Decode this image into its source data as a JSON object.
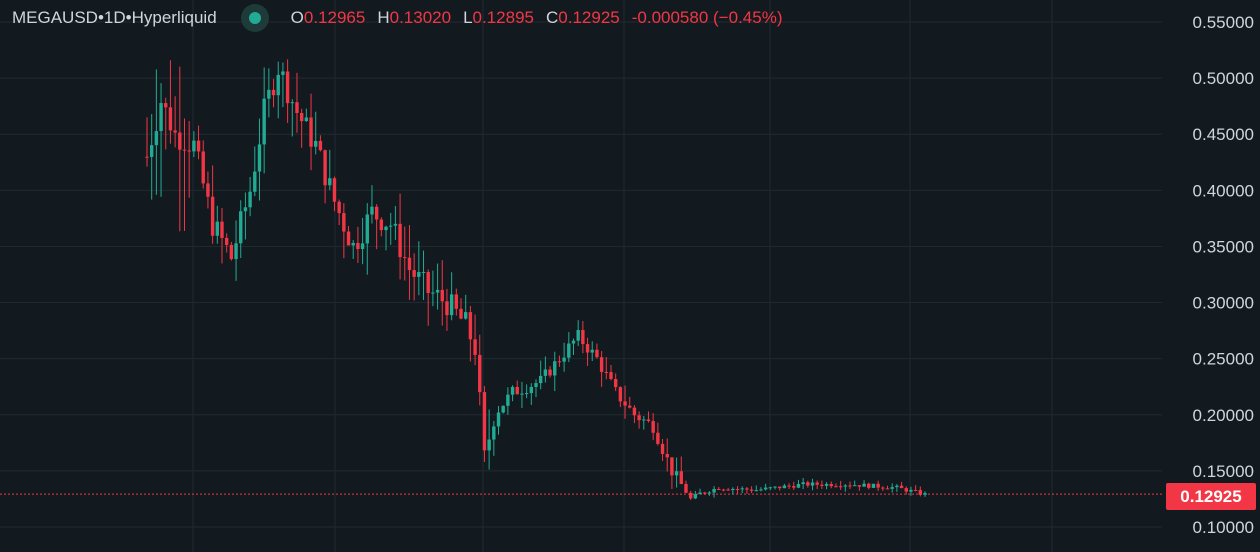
{
  "header": {
    "symbol": "MEGAUSD",
    "separator1": " • ",
    "interval": "1D",
    "separator2": " • ",
    "exchange": "Hyperliquid",
    "open_label": "O",
    "open": "0.12965",
    "high_label": "H",
    "high": "0.13020",
    "low_label": "L",
    "low": "0.12895",
    "close_label": "C",
    "close": "0.12925",
    "change": "-0.000580 (−0.45%)"
  },
  "last_price": "0.12925",
  "colors": {
    "background": "#131a1f",
    "up": "#22ab94",
    "down": "#f23645",
    "grid": "#1f2a30",
    "text": "#d1d4dc"
  },
  "chart_data": {
    "type": "candlestick",
    "y_ticks": [
      "0.55000",
      "0.50000",
      "0.45000",
      "0.40000",
      "0.35000",
      "0.30000",
      "0.25000",
      "0.20000",
      "0.15000",
      "0.10000"
    ],
    "ylim": [
      0.09,
      0.57
    ],
    "last_close": 0.12925,
    "grid": true
  }
}
